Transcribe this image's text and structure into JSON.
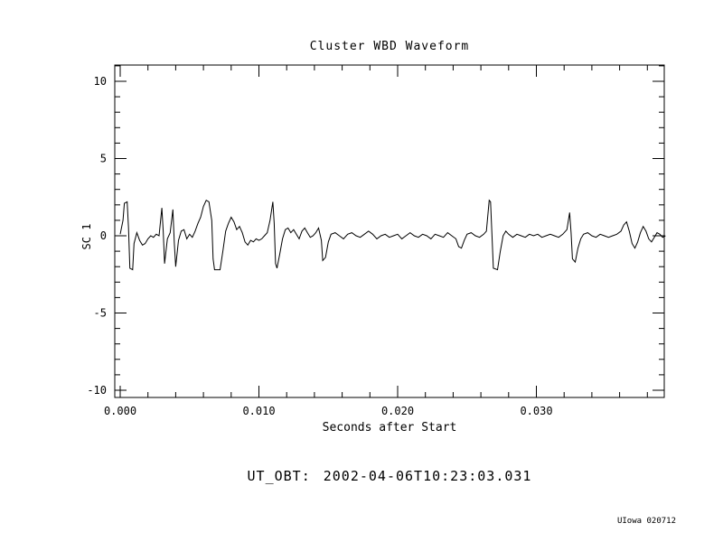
{
  "chart_data": {
    "type": "line",
    "title": "Cluster WBD Waveform",
    "xlabel": "Seconds after Start",
    "ylabel": "SC 1",
    "series_name": "SC 1",
    "xlim": [
      0.0,
      0.0393
    ],
    "ylim": [
      -10,
      10
    ],
    "x_ticks": [
      0.0,
      0.01,
      0.02,
      0.03
    ],
    "x_tick_labels": [
      "0.000",
      "0.010",
      "0.020",
      "0.030"
    ],
    "y_ticks": [
      -10,
      -5,
      0,
      5,
      10
    ],
    "y_tick_labels": [
      "-10",
      "-5",
      "0",
      "5",
      "10"
    ],
    "x_minor_step": 0.002,
    "y_minor_step": 1,
    "grid": false,
    "legend_position": "none",
    "line_color": "#000000",
    "background": "#ffffff",
    "points": [
      [
        0.0,
        0.1
      ],
      [
        0.0002,
        1.0
      ],
      [
        0.0003,
        2.1
      ],
      [
        0.0005,
        2.2
      ],
      [
        0.0006,
        0.5
      ],
      [
        0.0007,
        -2.1
      ],
      [
        0.0009,
        -2.2
      ],
      [
        0.001,
        -0.5
      ],
      [
        0.0012,
        0.2
      ],
      [
        0.0014,
        -0.3
      ],
      [
        0.0016,
        -0.6
      ],
      [
        0.0018,
        -0.5
      ],
      [
        0.002,
        -0.2
      ],
      [
        0.0022,
        0.0
      ],
      [
        0.0024,
        -0.1
      ],
      [
        0.0026,
        0.1
      ],
      [
        0.0028,
        0.0
      ],
      [
        0.003,
        1.8
      ],
      [
        0.0031,
        0.3
      ],
      [
        0.0032,
        -1.8
      ],
      [
        0.0034,
        -0.2
      ],
      [
        0.0036,
        0.2
      ],
      [
        0.0038,
        1.7
      ],
      [
        0.0039,
        -0.5
      ],
      [
        0.004,
        -2.0
      ],
      [
        0.0042,
        -0.3
      ],
      [
        0.0044,
        0.3
      ],
      [
        0.0046,
        0.4
      ],
      [
        0.0048,
        -0.2
      ],
      [
        0.005,
        0.1
      ],
      [
        0.0052,
        -0.1
      ],
      [
        0.0054,
        0.3
      ],
      [
        0.0056,
        0.8
      ],
      [
        0.0058,
        1.2
      ],
      [
        0.006,
        1.9
      ],
      [
        0.0062,
        2.3
      ],
      [
        0.0064,
        2.2
      ],
      [
        0.0066,
        1.0
      ],
      [
        0.0067,
        -1.5
      ],
      [
        0.0068,
        -2.2
      ],
      [
        0.0072,
        -2.2
      ],
      [
        0.0074,
        -1.0
      ],
      [
        0.0076,
        0.3
      ],
      [
        0.0078,
        0.8
      ],
      [
        0.008,
        1.2
      ],
      [
        0.0082,
        0.9
      ],
      [
        0.0084,
        0.4
      ],
      [
        0.0086,
        0.6
      ],
      [
        0.0088,
        0.2
      ],
      [
        0.009,
        -0.4
      ],
      [
        0.0092,
        -0.6
      ],
      [
        0.0094,
        -0.3
      ],
      [
        0.0096,
        -0.4
      ],
      [
        0.0098,
        -0.2
      ],
      [
        0.01,
        -0.3
      ],
      [
        0.0102,
        -0.2
      ],
      [
        0.0104,
        0.0
      ],
      [
        0.0106,
        0.2
      ],
      [
        0.0108,
        1.0
      ],
      [
        0.011,
        2.2
      ],
      [
        0.0111,
        0.8
      ],
      [
        0.0112,
        -1.8
      ],
      [
        0.0113,
        -2.1
      ],
      [
        0.0115,
        -1.2
      ],
      [
        0.0117,
        -0.2
      ],
      [
        0.0119,
        0.4
      ],
      [
        0.0121,
        0.5
      ],
      [
        0.0123,
        0.2
      ],
      [
        0.0125,
        0.4
      ],
      [
        0.0127,
        0.1
      ],
      [
        0.0129,
        -0.2
      ],
      [
        0.0131,
        0.3
      ],
      [
        0.0133,
        0.5
      ],
      [
        0.0135,
        0.2
      ],
      [
        0.0137,
        -0.1
      ],
      [
        0.0139,
        0.0
      ],
      [
        0.0141,
        0.2
      ],
      [
        0.0143,
        0.5
      ],
      [
        0.0145,
        -0.3
      ],
      [
        0.0146,
        -1.6
      ],
      [
        0.0148,
        -1.4
      ],
      [
        0.015,
        -0.4
      ],
      [
        0.0152,
        0.1
      ],
      [
        0.0155,
        0.2
      ],
      [
        0.0158,
        0.0
      ],
      [
        0.0161,
        -0.2
      ],
      [
        0.0164,
        0.1
      ],
      [
        0.0167,
        0.2
      ],
      [
        0.017,
        0.0
      ],
      [
        0.0173,
        -0.1
      ],
      [
        0.0176,
        0.1
      ],
      [
        0.0179,
        0.3
      ],
      [
        0.0182,
        0.1
      ],
      [
        0.0185,
        -0.2
      ],
      [
        0.0188,
        0.0
      ],
      [
        0.0191,
        0.1
      ],
      [
        0.0194,
        -0.1
      ],
      [
        0.0197,
        0.0
      ],
      [
        0.02,
        0.1
      ],
      [
        0.0203,
        -0.2
      ],
      [
        0.0206,
        0.0
      ],
      [
        0.0209,
        0.2
      ],
      [
        0.0212,
        0.0
      ],
      [
        0.0215,
        -0.1
      ],
      [
        0.0218,
        0.1
      ],
      [
        0.0221,
        0.0
      ],
      [
        0.0224,
        -0.2
      ],
      [
        0.0227,
        0.1
      ],
      [
        0.023,
        0.0
      ],
      [
        0.0233,
        -0.1
      ],
      [
        0.0236,
        0.2
      ],
      [
        0.0239,
        0.0
      ],
      [
        0.0242,
        -0.2
      ],
      [
        0.0244,
        -0.7
      ],
      [
        0.0246,
        -0.8
      ],
      [
        0.0248,
        -0.3
      ],
      [
        0.025,
        0.1
      ],
      [
        0.0253,
        0.2
      ],
      [
        0.0256,
        0.0
      ],
      [
        0.0259,
        -0.1
      ],
      [
        0.0262,
        0.1
      ],
      [
        0.0264,
        0.3
      ],
      [
        0.0266,
        2.3
      ],
      [
        0.0267,
        2.2
      ],
      [
        0.0268,
        0.0
      ],
      [
        0.0269,
        -2.1
      ],
      [
        0.0272,
        -2.2
      ],
      [
        0.0274,
        -1.0
      ],
      [
        0.0276,
        0.0
      ],
      [
        0.0278,
        0.3
      ],
      [
        0.028,
        0.1
      ],
      [
        0.0283,
        -0.1
      ],
      [
        0.0286,
        0.1
      ],
      [
        0.0289,
        0.0
      ],
      [
        0.0292,
        -0.1
      ],
      [
        0.0295,
        0.1
      ],
      [
        0.0298,
        0.0
      ],
      [
        0.0301,
        0.1
      ],
      [
        0.0304,
        -0.1
      ],
      [
        0.0307,
        0.0
      ],
      [
        0.031,
        0.1
      ],
      [
        0.0313,
        0.0
      ],
      [
        0.0316,
        -0.1
      ],
      [
        0.0319,
        0.1
      ],
      [
        0.0322,
        0.4
      ],
      [
        0.0324,
        1.5
      ],
      [
        0.0325,
        0.2
      ],
      [
        0.0326,
        -1.5
      ],
      [
        0.0328,
        -1.7
      ],
      [
        0.033,
        -0.8
      ],
      [
        0.0332,
        -0.2
      ],
      [
        0.0334,
        0.1
      ],
      [
        0.0337,
        0.2
      ],
      [
        0.034,
        0.0
      ],
      [
        0.0343,
        -0.1
      ],
      [
        0.0346,
        0.1
      ],
      [
        0.0349,
        0.0
      ],
      [
        0.0352,
        -0.1
      ],
      [
        0.0355,
        0.0
      ],
      [
        0.0358,
        0.1
      ],
      [
        0.0361,
        0.3
      ],
      [
        0.0363,
        0.7
      ],
      [
        0.0365,
        0.9
      ],
      [
        0.0367,
        0.3
      ],
      [
        0.0369,
        -0.5
      ],
      [
        0.0371,
        -0.8
      ],
      [
        0.0373,
        -0.4
      ],
      [
        0.0375,
        0.2
      ],
      [
        0.0377,
        0.6
      ],
      [
        0.0379,
        0.3
      ],
      [
        0.0381,
        -0.2
      ],
      [
        0.0383,
        -0.4
      ],
      [
        0.0385,
        -0.1
      ],
      [
        0.0387,
        0.2
      ],
      [
        0.0389,
        0.1
      ],
      [
        0.0391,
        -0.1
      ],
      [
        0.0393,
        0.0
      ]
    ]
  },
  "footer": {
    "ut_obt_prefix": "UT_OBT:",
    "ut_obt_value": "2002-04-06T10:23:03.031",
    "credit": "UIowa 020712"
  }
}
